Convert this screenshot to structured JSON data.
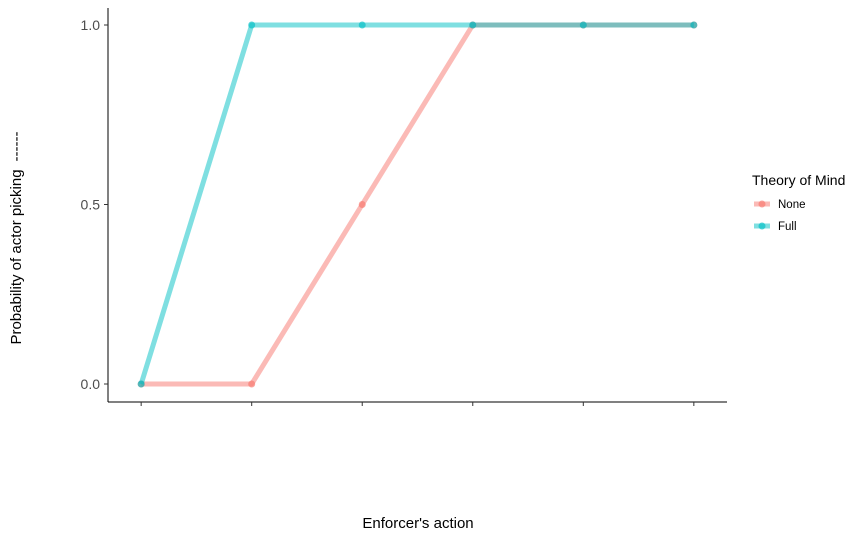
{
  "chart_data": {
    "type": "line",
    "title": "",
    "xlabel": "Enforcer's action",
    "ylabel": "Probability of actor picking",
    "ylabel_suffix": "------",
    "x": [
      1,
      2,
      3,
      4,
      5,
      6
    ],
    "x_tick_labels": [
      "",
      "",
      "",
      "",
      "",
      ""
    ],
    "y_ticks": [
      "0.0",
      "0.5",
      "1.0"
    ],
    "ylim": [
      0,
      1
    ],
    "grid": false,
    "legend": {
      "title": "Theory of Mind",
      "position": "right"
    },
    "series": [
      {
        "name": "None",
        "values": [
          0,
          0,
          0.5,
          1,
          1,
          1
        ],
        "color": "#f8766d"
      },
      {
        "name": "Full",
        "values": [
          0,
          1,
          1,
          1,
          1,
          1
        ],
        "color": "#00bfc4"
      }
    ]
  }
}
